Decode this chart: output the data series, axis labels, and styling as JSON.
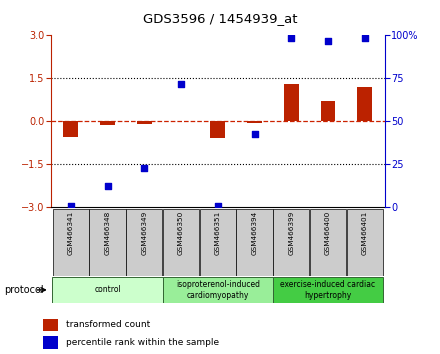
{
  "title": "GDS3596 / 1454939_at",
  "samples": [
    "GSM466341",
    "GSM466348",
    "GSM466349",
    "GSM466350",
    "GSM466351",
    "GSM466394",
    "GSM466399",
    "GSM466400",
    "GSM466401"
  ],
  "red_values": [
    -0.55,
    -0.12,
    -0.1,
    0.02,
    -0.6,
    -0.05,
    1.3,
    0.7,
    1.2
  ],
  "blue_values": [
    -2.95,
    -2.25,
    -1.65,
    1.3,
    -2.95,
    -0.45,
    2.9,
    2.82,
    2.9
  ],
  "ylim_left": [
    -3,
    3
  ],
  "ylim_right": [
    0,
    100
  ],
  "yticks_left": [
    -3,
    -1.5,
    0,
    1.5,
    3
  ],
  "yticks_right": [
    0,
    25,
    50,
    75,
    100
  ],
  "groups": [
    {
      "label": "control",
      "start": 0,
      "end": 3,
      "color": "#ccffcc"
    },
    {
      "label": "isoproterenol-induced\ncardiomyopathy",
      "start": 3,
      "end": 6,
      "color": "#99ee99"
    },
    {
      "label": "exercise-induced cardiac\nhypertrophy",
      "start": 6,
      "end": 9,
      "color": "#44cc44"
    }
  ],
  "bar_width": 0.4,
  "red_color": "#bb2200",
  "blue_color": "#0000cc",
  "zero_line_color": "#cc2200",
  "background_color": "#ffffff",
  "label_bg_color": "#cccccc",
  "protocol_label": "protocol",
  "legend_red": "transformed count",
  "legend_blue": "percentile rank within the sample"
}
